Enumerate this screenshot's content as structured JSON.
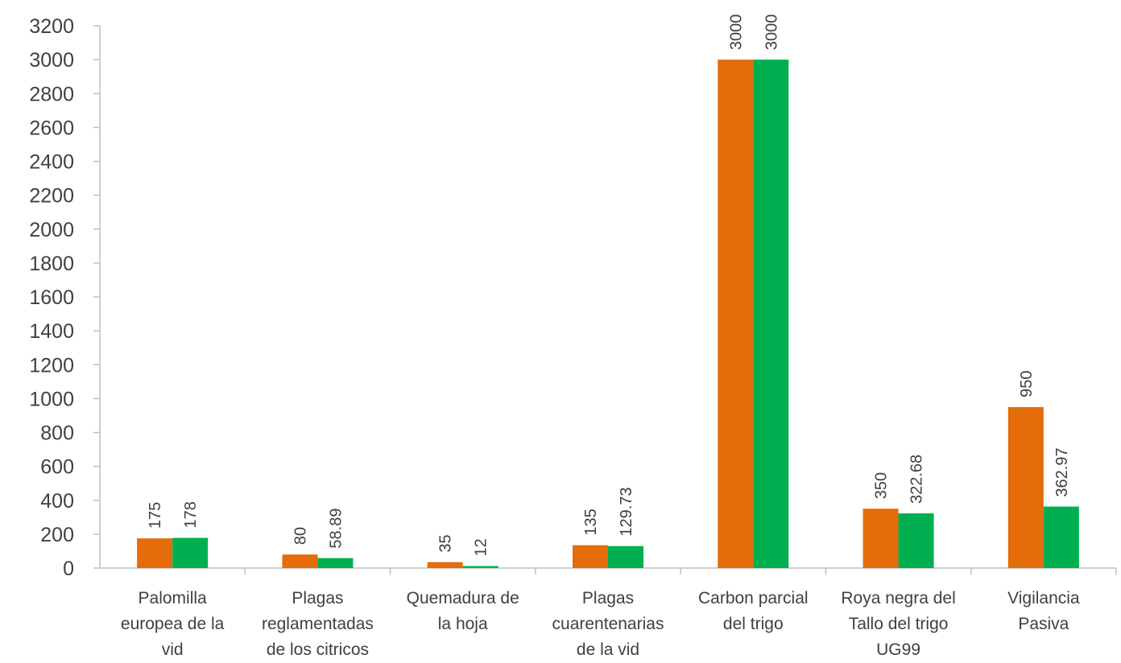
{
  "chart_data": {
    "type": "bar",
    "title": "",
    "xlabel": "",
    "ylabel": "",
    "ylim": [
      0,
      3200
    ],
    "y_ticks": [
      0,
      200,
      400,
      600,
      800,
      1000,
      1200,
      1400,
      1600,
      1800,
      2000,
      2200,
      2400,
      2600,
      2800,
      3000,
      3200
    ],
    "grid": false,
    "legend": "none",
    "categories": [
      [
        "Palomilla",
        "europea de la",
        "vid"
      ],
      [
        "Plagas",
        "reglamentadas",
        "de los citricos"
      ],
      [
        "Quemadura de",
        "la hoja"
      ],
      [
        "Plagas",
        "cuarentenarias",
        "de la vid"
      ],
      [
        "Carbon parcial",
        "del trigo"
      ],
      [
        "Roya negra del",
        "Tallo del trigo",
        "UG99"
      ],
      [
        "Vigilancia",
        "Pasiva"
      ]
    ],
    "series": [
      {
        "color": "#E46C0A",
        "values": [
          175,
          80,
          35,
          135,
          3000,
          350,
          950
        ],
        "labels": [
          "175",
          "80",
          "35",
          "135",
          "3000",
          "350",
          "950"
        ]
      },
      {
        "color": "#00B050",
        "values": [
          178,
          58.89,
          12,
          129.73,
          3000,
          322.68,
          362.97
        ],
        "labels": [
          "178",
          "58.89",
          "12",
          "129.73",
          "3000",
          "322.68",
          "362.97"
        ]
      }
    ]
  }
}
